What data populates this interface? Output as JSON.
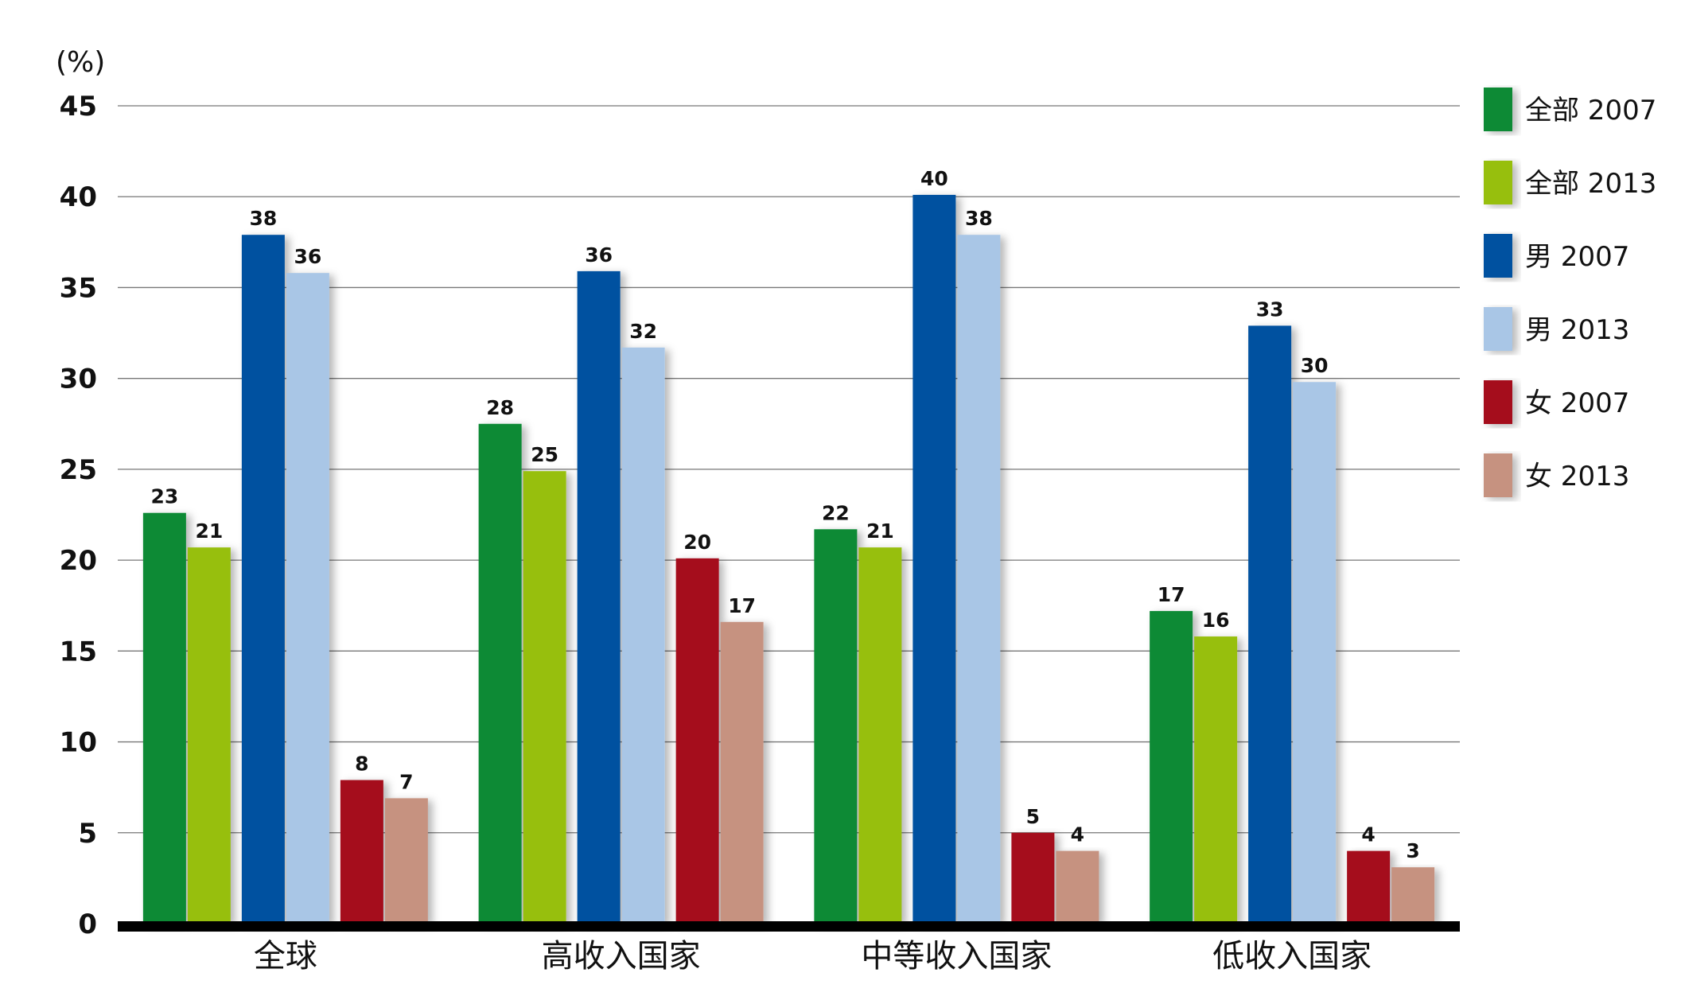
{
  "chart_data": {
    "type": "bar",
    "title": "",
    "xlabel": "",
    "ylabel": "(%)",
    "ylim": [
      0,
      45
    ],
    "yticks": [
      0,
      5,
      10,
      15,
      20,
      25,
      30,
      35,
      40,
      45
    ],
    "grid": true,
    "legend_position": "right",
    "categories": [
      "全球",
      "高收入国家",
      "中等收入国家",
      "低收入国家"
    ],
    "series": [
      {
        "name": "全部 2007",
        "color": "#0b8a36",
        "values": [
          22.6,
          27.5,
          21.7,
          17.2
        ],
        "labels": [
          "23",
          "28",
          "22",
          "17"
        ]
      },
      {
        "name": "全部 2013",
        "color": "#97bf0d",
        "values": [
          20.7,
          24.9,
          20.7,
          15.8
        ],
        "labels": [
          "21",
          "25",
          "21",
          "16"
        ]
      },
      {
        "name": "男 2007",
        "color": "#0051a0",
        "values": [
          37.9,
          35.9,
          40.1,
          32.9
        ],
        "labels": [
          "38",
          "36",
          "40",
          "33"
        ]
      },
      {
        "name": "男 2013",
        "color": "#a9c6e6",
        "values": [
          35.8,
          31.7,
          37.9,
          29.8
        ],
        "labels": [
          "36",
          "32",
          "38",
          "30"
        ]
      },
      {
        "name": "女 2007",
        "color": "#a5101b",
        "values": [
          7.9,
          20.1,
          5.0,
          4.0
        ],
        "labels": [
          "8",
          "20",
          "5",
          "4"
        ]
      },
      {
        "name": "女 2013",
        "color": "#c69280",
        "values": [
          6.9,
          16.6,
          4.0,
          3.1
        ],
        "labels": [
          "7",
          "17",
          "4",
          "3"
        ]
      }
    ]
  }
}
